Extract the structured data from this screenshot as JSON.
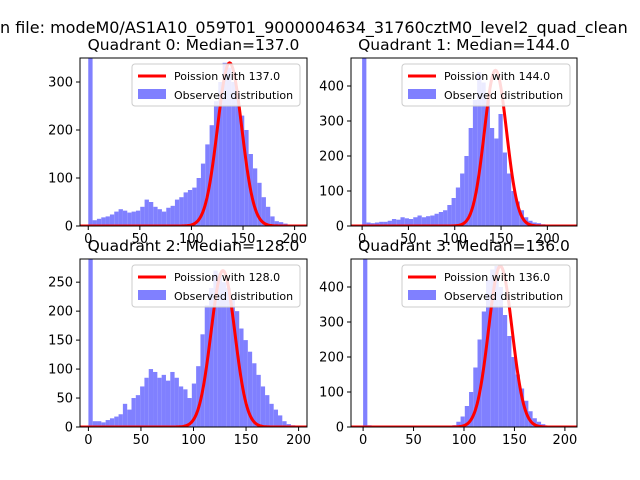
{
  "suptitle": "n file: modeM0/AS1A10_059T01_9000004634_31760cztM0_level2_quad_clean",
  "colors": {
    "hist": "#8080ff",
    "fit": "#ff0000"
  },
  "chart_data": [
    {
      "type": "bar",
      "title": "Quadrant 0: Median=137.0",
      "xlim": [
        -8,
        212
      ],
      "ylim": [
        0,
        350
      ],
      "xticks": [
        0,
        50,
        100,
        150,
        200
      ],
      "yticks": [
        0,
        100,
        200,
        300
      ],
      "legend": {
        "placement": "top-right",
        "fit_label": "Poission with 137.0",
        "hist_label": "Observed distribution"
      },
      "bin_start": 0,
      "bin_width": 4.2,
      "values": [
        350,
        12,
        15,
        18,
        20,
        24,
        30,
        35,
        32,
        28,
        30,
        32,
        40,
        55,
        50,
        40,
        35,
        30,
        38,
        42,
        55,
        60,
        70,
        75,
        80,
        100,
        130,
        170,
        210,
        260,
        300,
        340,
        330,
        300,
        280,
        230,
        200,
        150,
        120,
        90,
        60,
        40,
        20,
        10,
        8,
        5,
        3,
        2
      ],
      "fit_mean": 137.0,
      "fit_scale": 340
    },
    {
      "type": "bar",
      "title": "Quadrant 1: Median=144.0",
      "xlim": [
        -12,
        232
      ],
      "ylim": [
        0,
        480
      ],
      "xticks": [
        0,
        50,
        100,
        150,
        200
      ],
      "yticks": [
        0,
        100,
        200,
        300,
        400
      ],
      "legend": {
        "placement": "top-right",
        "fit_label": "Poission with 144.0",
        "hist_label": "Observed distribution"
      },
      "bin_start": 0,
      "bin_width": 4.6,
      "values": [
        480,
        10,
        8,
        10,
        12,
        12,
        15,
        20,
        18,
        25,
        22,
        20,
        25,
        30,
        25,
        28,
        30,
        35,
        40,
        45,
        60,
        80,
        110,
        150,
        200,
        280,
        360,
        440,
        410,
        360,
        280,
        250,
        320,
        210,
        150,
        100,
        70,
        45,
        25,
        15,
        10,
        8,
        5,
        4,
        3,
        2,
        2,
        1
      ],
      "fit_mean": 144.0,
      "fit_scale": 445
    },
    {
      "type": "bar",
      "title": "Quadrant 2: Median=128.0",
      "xlim": [
        -8,
        208
      ],
      "ylim": [
        0,
        290
      ],
      "xticks": [
        0,
        50,
        100,
        150,
        200
      ],
      "yticks": [
        0,
        50,
        100,
        150,
        200,
        250
      ],
      "legend": {
        "placement": "top-right",
        "fit_label": "Poission with 128.0",
        "hist_label": "Observed distribution"
      },
      "bin_start": 0,
      "bin_width": 4.1,
      "values": [
        290,
        10,
        10,
        8,
        12,
        15,
        18,
        22,
        40,
        30,
        50,
        55,
        70,
        85,
        100,
        95,
        85,
        90,
        80,
        95,
        85,
        70,
        65,
        50,
        75,
        105,
        160,
        210,
        240,
        270,
        265,
        250,
        240,
        220,
        200,
        170,
        150,
        130,
        110,
        90,
        70,
        55,
        40,
        30,
        20,
        10,
        5,
        3
      ],
      "fit_mean": 128.0,
      "fit_scale": 270
    },
    {
      "type": "bar",
      "title": "Quadrant 3: Median=136.0",
      "xlim": [
        -12,
        212
      ],
      "ylim": [
        0,
        480
      ],
      "xticks": [
        0,
        50,
        100,
        150,
        200
      ],
      "yticks": [
        0,
        100,
        200,
        300,
        400
      ],
      "legend": {
        "placement": "top-right",
        "fit_label": "Poission with 136.0",
        "hist_label": "Observed distribution"
      },
      "bin_start": 0,
      "bin_width": 4.2,
      "values": [
        480,
        5,
        3,
        2,
        2,
        2,
        2,
        2,
        2,
        2,
        2,
        2,
        2,
        2,
        2,
        2,
        2,
        2,
        2,
        2,
        3,
        5,
        15,
        30,
        60,
        100,
        170,
        250,
        330,
        420,
        450,
        460,
        400,
        320,
        260,
        200,
        150,
        110,
        75,
        45,
        25,
        15,
        8,
        4,
        2,
        1,
        1,
        1
      ],
      "fit_mean": 136.0,
      "fit_scale": 460
    }
  ]
}
